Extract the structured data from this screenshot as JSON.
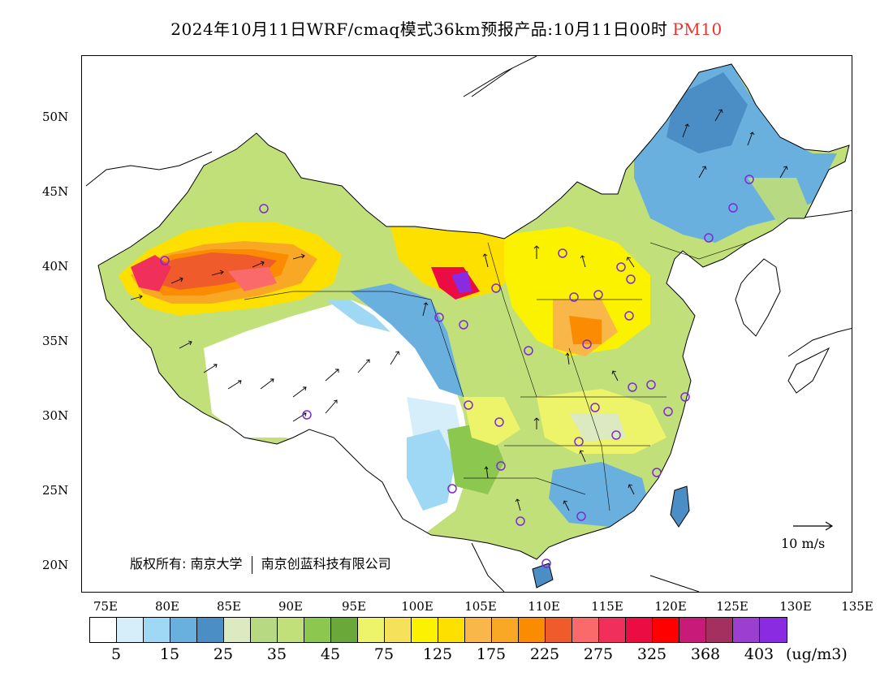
{
  "title": {
    "main": "2024年10月11日WRF/cmaq模式36km预报产品:10月11日00时",
    "pollutant": "PM10"
  },
  "map": {
    "lat_labels": [
      "50N",
      "45N",
      "40N",
      "35N",
      "30N",
      "25N",
      "20N"
    ],
    "lon_labels": [
      "75E",
      "80E",
      "85E",
      "90E",
      "95E",
      "100E",
      "105E",
      "110E",
      "115E",
      "120E",
      "125E",
      "130E",
      "135E"
    ],
    "copyright": "版权所有: 南京大学",
    "copyright2": "南京创蓝科技有限公司",
    "wind_reference": "10 m/s"
  },
  "colorbar": {
    "colors": [
      "#ffffff",
      "#d6eefa",
      "#9fd8f4",
      "#6ab0df",
      "#4a8ec5",
      "#dbeac1",
      "#b7d982",
      "#c2e07a",
      "#8cc74f",
      "#6aa83a",
      "#eef469",
      "#f5e25a",
      "#fbf200",
      "#fde000",
      "#f9b649",
      "#f9a825",
      "#fb8b00",
      "#ef5b2a",
      "#fb6a6a",
      "#f0305a",
      "#eb0c44",
      "#ff0000",
      "#c81a78",
      "#a43060",
      "#9c3fd0",
      "#8a2be2"
    ],
    "labels": [
      "5",
      "15",
      "25",
      "35",
      "45",
      "75",
      "125",
      "175",
      "225",
      "275",
      "325",
      "368",
      "403"
    ],
    "unit": "(ug/m3)"
  }
}
